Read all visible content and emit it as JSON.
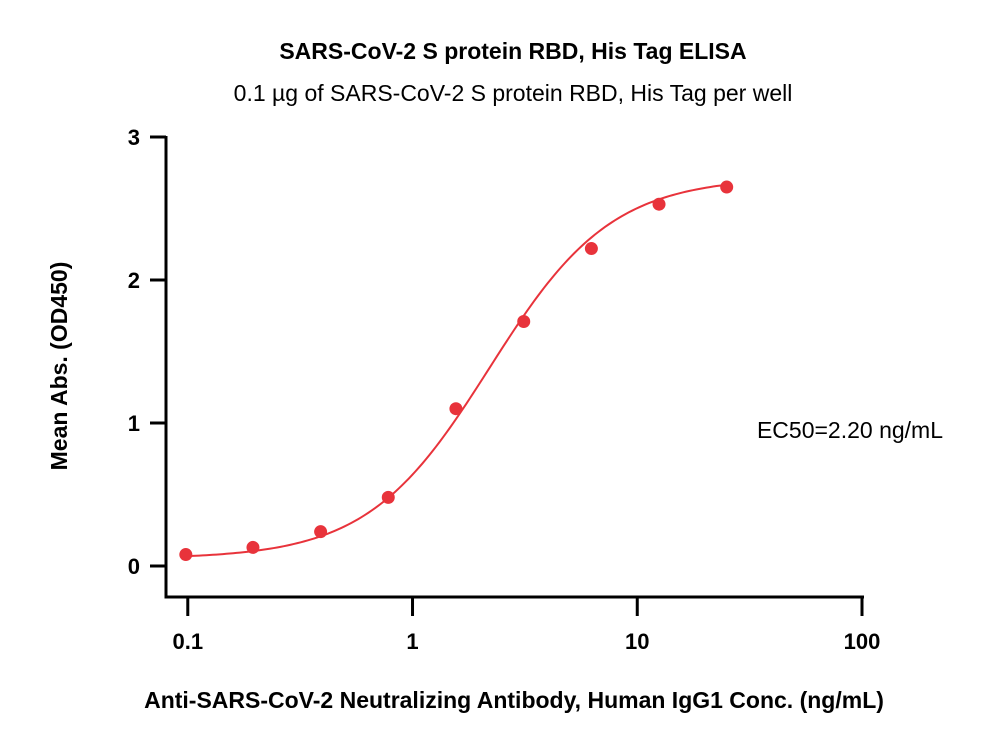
{
  "chart_data": {
    "type": "scatter",
    "title": "SARS-CoV-2 S protein RBD, His Tag ELISA",
    "subtitle": "0.1 µg of SARS-CoV-2 S protein RBD, His Tag per well",
    "xlabel": "Anti-SARS-CoV-2 Neutralizing Antibody, Human IgG1 Conc. (ng/mL)",
    "ylabel": "Mean Abs. (OD450)",
    "x_scale": "log",
    "xlim": [
      0.08,
      100
    ],
    "ylim": [
      0,
      3
    ],
    "x_ticks": [
      0.1,
      1,
      10,
      100
    ],
    "x_tick_labels": [
      "0.1",
      "1",
      "10",
      "100"
    ],
    "y_ticks": [
      0,
      1,
      2,
      3
    ],
    "y_tick_labels": [
      "0",
      "1",
      "2",
      "3"
    ],
    "grid": false,
    "color": "#e8333b",
    "series": [
      {
        "x": [
          0.098,
          0.195,
          0.39,
          0.78,
          1.56,
          3.125,
          6.25,
          12.5,
          25
        ],
        "y": [
          0.08,
          0.13,
          0.24,
          0.48,
          1.1,
          1.71,
          2.22,
          2.53,
          2.65
        ]
      }
    ],
    "fit": {
      "model": "4PL",
      "bottom": 0.05,
      "top": 2.72,
      "ec50": 2.2,
      "hill": 1.6
    },
    "annotation": "EC50=2.20 ng/mL"
  }
}
